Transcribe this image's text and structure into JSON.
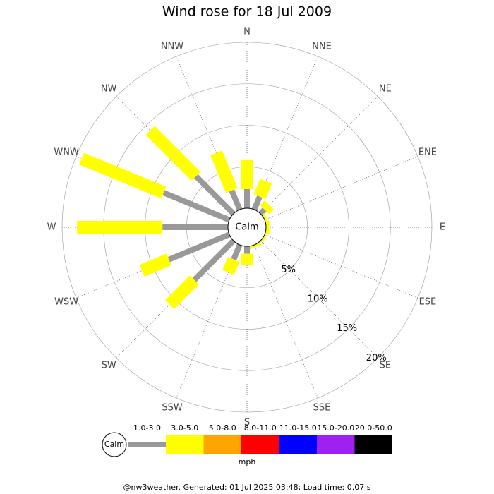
{
  "chart_data": {
    "type": "windrose",
    "title": "Wind rose for 18 Jul 2009",
    "categories": [
      "N",
      "NNE",
      "NE",
      "ENE",
      "E",
      "ESE",
      "SE",
      "SSE",
      "S",
      "SSW",
      "SW",
      "WSW",
      "W",
      "WNW",
      "NW",
      "NNW"
    ],
    "calm_label": "Calm",
    "unit": "mph",
    "series": [
      {
        "name": "1.0-3.0",
        "color": "#999999",
        "values": [
          2.3,
          1.7,
          0.7,
          0,
          0,
          0,
          0,
          0,
          0.9,
          1.9,
          6.7,
          7.9,
          7.9,
          8.6,
          6.4,
          2.5
        ]
      },
      {
        "name": "3.0-5.0",
        "color": "#ffff00",
        "values": [
          3.5,
          2.0,
          0.8,
          0.3,
          0.4,
          0.2,
          0.2,
          0.3,
          1.4,
          1.7,
          4.2,
          3.5,
          10.3,
          10.7,
          7.8,
          4.9
        ]
      },
      {
        "name": "5.0-8.0",
        "color": "#ffa500",
        "values": [
          0,
          0,
          0,
          0,
          0,
          0,
          0,
          0,
          0,
          0,
          0,
          0,
          0,
          0,
          0,
          0
        ]
      },
      {
        "name": "8.0-11.0",
        "color": "#ff0000",
        "values": [
          0,
          0,
          0,
          0,
          0,
          0,
          0,
          0,
          0,
          0,
          0,
          0,
          0,
          0,
          0,
          0
        ]
      },
      {
        "name": "11.0-15.0",
        "color": "#0000ff",
        "values": [
          0,
          0,
          0,
          0,
          0,
          0,
          0,
          0,
          0,
          0,
          0,
          0,
          0,
          0,
          0,
          0
        ]
      },
      {
        "name": "15.0-20.0",
        "color": "#a020f0",
        "values": [
          0,
          0,
          0,
          0,
          0,
          0,
          0,
          0,
          0,
          0,
          0,
          0,
          0,
          0,
          0,
          0
        ]
      },
      {
        "name": "20.0-50.0",
        "color": "#000000",
        "values": [
          0,
          0,
          0,
          0,
          0,
          0,
          0,
          0,
          0,
          0,
          0,
          0,
          0,
          0,
          0,
          0
        ]
      }
    ],
    "rlim": [
      0,
      20
    ],
    "rticks": [
      {
        "value": 5,
        "label": "5%"
      },
      {
        "value": 10,
        "label": "10%"
      },
      {
        "value": 15,
        "label": "15%"
      },
      {
        "value": 20,
        "label": "20%"
      }
    ],
    "footer": "@nw3weather. Generated: 01 Jul 2025 03:48; Load time: 0.07 s"
  }
}
